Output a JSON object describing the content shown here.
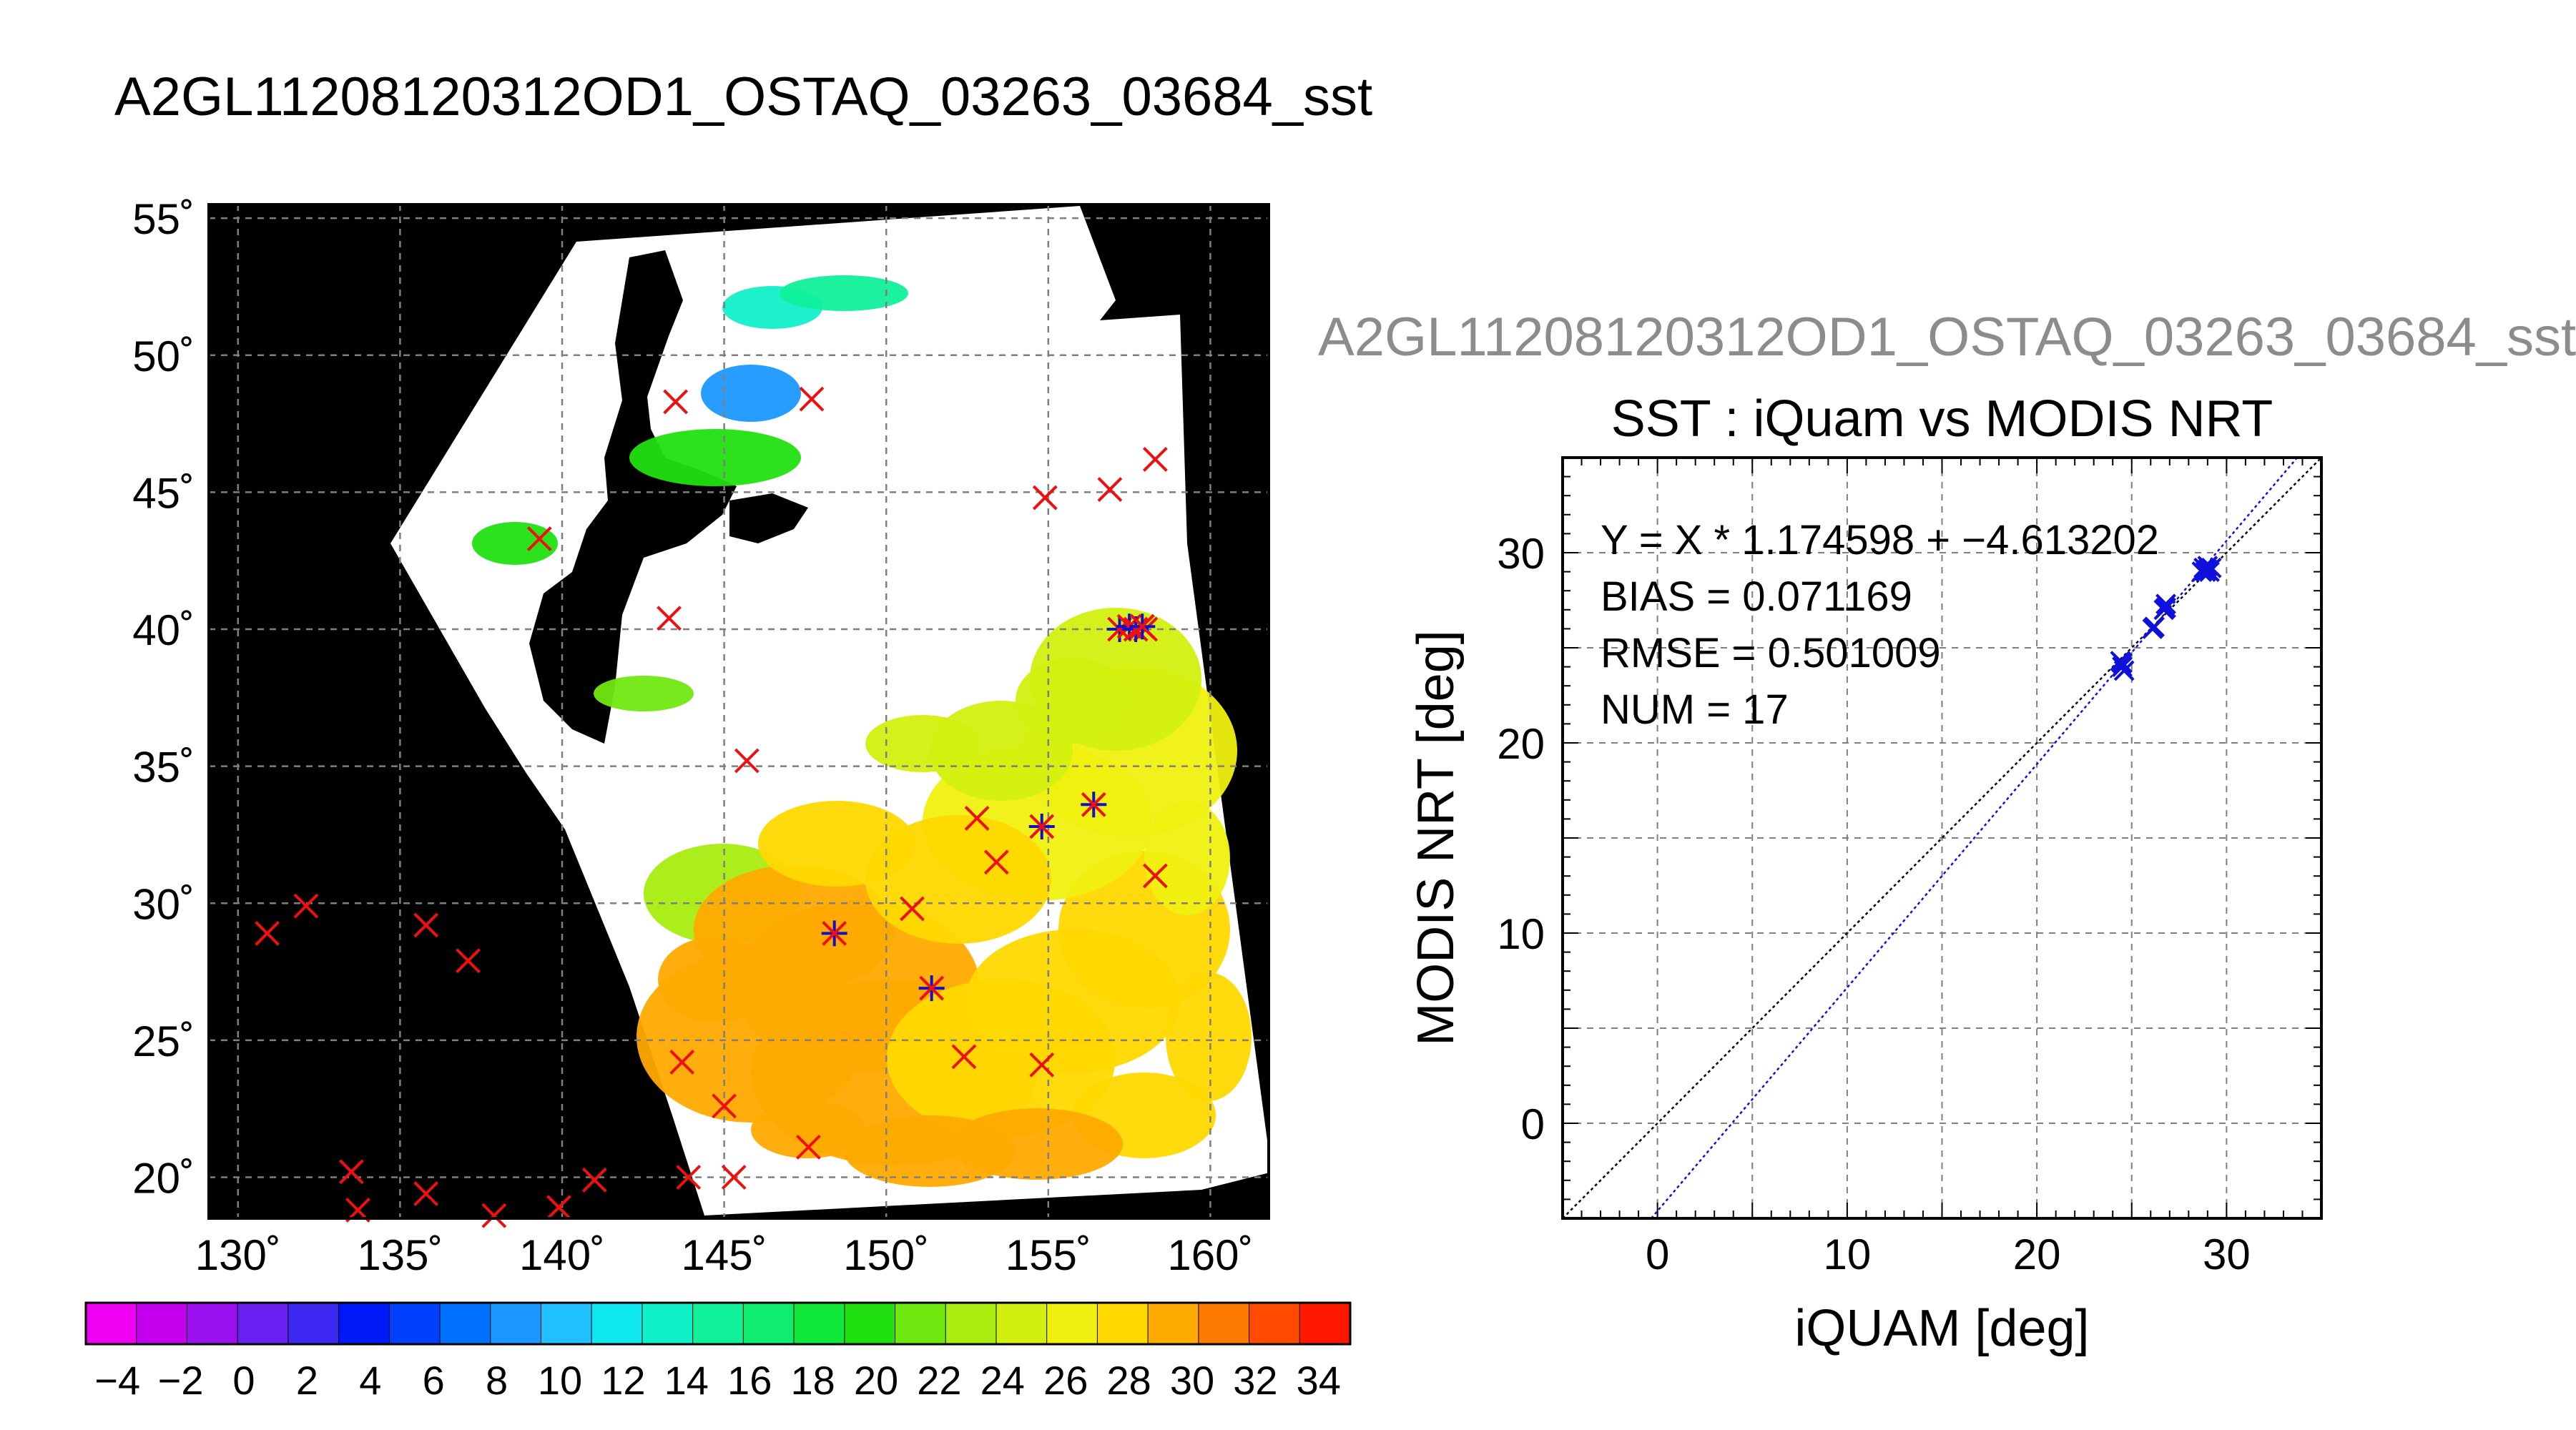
{
  "main_title": "A2GL11208120312OD1_OSTAQ_03263_03684_sst",
  "side_title": "A2GL11208120312OD1_OSTAQ_03263_03684_sst",
  "map": {
    "lat_labels": [
      "55˚",
      "50˚",
      "45˚",
      "40˚",
      "35˚",
      "30˚",
      "25˚",
      "20˚"
    ],
    "lat_values": [
      55,
      50,
      45,
      40,
      35,
      30,
      25,
      20
    ],
    "lon_labels": [
      "130˚",
      "135˚",
      "140˚",
      "145˚",
      "150˚",
      "155˚",
      "160˚"
    ],
    "lon_values": [
      130,
      135,
      140,
      145,
      150,
      155,
      160
    ],
    "lon_range": [
      129.1,
      161.8
    ],
    "lat_range": [
      18.5,
      55.5
    ],
    "land_color": "#000000",
    "cloud_color": "#ffffff",
    "grid": true,
    "iquam_only_points": [
      [
        130.9,
        28.9
      ],
      [
        132.1,
        29.9
      ],
      [
        135.8,
        29.2
      ],
      [
        137.1,
        27.9
      ],
      [
        133.5,
        20.2
      ],
      [
        133.7,
        18.8
      ],
      [
        135.8,
        19.4
      ],
      [
        137.9,
        18.6
      ],
      [
        139.9,
        18.9
      ],
      [
        141.0,
        19.9
      ],
      [
        143.5,
        48.3
      ],
      [
        147.7,
        48.4
      ],
      [
        139.3,
        43.3
      ],
      [
        143.3,
        40.4
      ],
      [
        154.9,
        44.8
      ],
      [
        156.9,
        45.1
      ],
      [
        158.3,
        46.2
      ],
      [
        145.7,
        35.2
      ],
      [
        152.8,
        33.1
      ],
      [
        153.4,
        31.5
      ],
      [
        150.8,
        29.8
      ],
      [
        158.3,
        31.0
      ],
      [
        143.7,
        24.2
      ],
      [
        145.0,
        22.6
      ],
      [
        147.6,
        21.1
      ],
      [
        143.9,
        20.0
      ],
      [
        145.3,
        20.0
      ],
      [
        152.4,
        24.4
      ],
      [
        154.8,
        24.1
      ],
      [
        158.0,
        40.0
      ]
    ],
    "matched_points": [
      [
        148.4,
        28.9
      ],
      [
        151.4,
        26.9
      ],
      [
        154.8,
        32.8
      ],
      [
        156.4,
        33.6
      ],
      [
        157.2,
        40.0
      ],
      [
        157.5,
        40.1
      ],
      [
        157.7,
        40.0
      ],
      [
        157.9,
        40.1
      ]
    ]
  },
  "colorbar": {
    "tick_labels": [
      "−4",
      "−2",
      "0",
      "2",
      "4",
      "6",
      "8",
      "10",
      "12",
      "14",
      "16",
      "18",
      "20",
      "22",
      "24",
      "26",
      "28",
      "30",
      "32",
      "34"
    ],
    "range": [
      -5,
      35
    ],
    "colors": [
      "#ee00f0",
      "#c400ee",
      "#9a10ee",
      "#6a20f0",
      "#3c28f0",
      "#0018f5",
      "#0040ff",
      "#0070ff",
      "#1a98ff",
      "#20c0ff",
      "#10e8f0",
      "#10f0c8",
      "#10f09a",
      "#10ec6e",
      "#10e83a",
      "#20e010",
      "#70e810",
      "#a8ec10",
      "#d2f010",
      "#f0f010",
      "#ffd800",
      "#ffaa00",
      "#ff7a00",
      "#ff4a00",
      "#ff1800"
    ]
  },
  "chart_data": {
    "type": "scatter",
    "title": "SST : iQuam vs MODIS NRT",
    "xlabel": "iQUAM [deg]",
    "ylabel": "MODIS NRT [deg]",
    "xlim": [
      -5,
      35
    ],
    "ylim": [
      -5,
      35
    ],
    "x_ticks": [
      0,
      10,
      20,
      30
    ],
    "y_ticks": [
      0,
      10,
      20,
      30
    ],
    "grid": true,
    "annotations": [
      "Y = X * 1.174598 + −4.613202",
      "BIAS = 0.071169",
      "RMSE = 0.501009",
      "NUM = 17"
    ],
    "fit": {
      "slope": 1.174598,
      "intercept": -4.613202,
      "color": "#1010dd"
    },
    "identity_line_color": "#000000",
    "marker_color": "#1010dd",
    "series": [
      {
        "x": [
          24.4,
          24.5,
          24.6,
          26.1,
          26.2,
          26.7,
          26.8,
          28.7,
          28.8,
          28.9,
          29.0,
          29.1,
          29.2,
          29.0,
          28.9,
          26.8,
          24.5
        ],
        "y": [
          24.3,
          24.0,
          23.8,
          26.0,
          26.1,
          27.0,
          27.3,
          29.0,
          29.2,
          29.1,
          29.3,
          29.0,
          29.2,
          29.1,
          29.0,
          27.1,
          24.2
        ]
      }
    ]
  }
}
